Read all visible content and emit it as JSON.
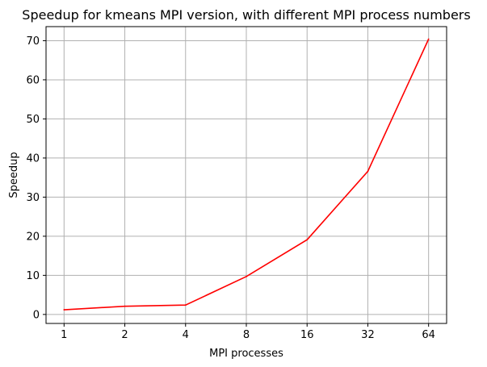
{
  "chart_data": {
    "type": "line",
    "title": "Speedup for kmeans MPI version, with different MPI process numbers",
    "xlabel": "MPI processes",
    "ylabel": "Speedup",
    "categories": [
      "1",
      "2",
      "4",
      "8",
      "16",
      "32",
      "64"
    ],
    "series": [
      {
        "values": [
          1.2,
          2.1,
          2.4,
          9.7,
          19.1,
          36.6,
          70.4
        ],
        "color": "#ff0000"
      }
    ],
    "yticks": [
      0,
      10,
      20,
      30,
      40,
      50,
      60,
      70
    ],
    "ylim": [
      -2.3,
      73.6
    ],
    "grid": true
  }
}
